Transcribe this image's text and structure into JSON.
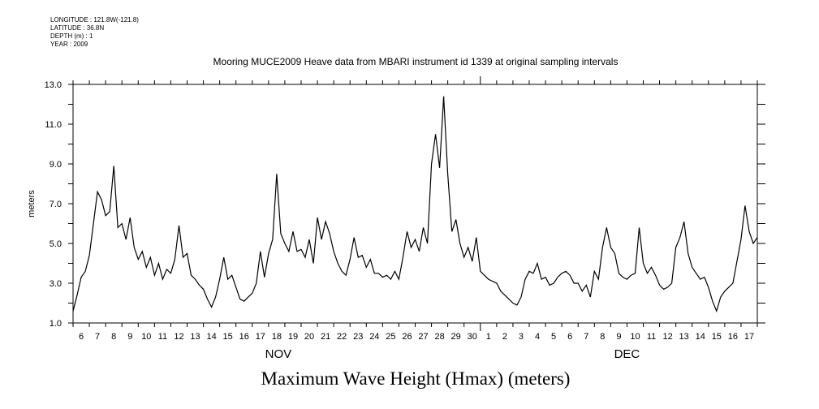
{
  "metadata": {
    "longitude": "LONGITUDE : 121.8W(-121.8)",
    "latitude": "LATITUDE : 36.8N",
    "depth": "DEPTH (m) : 1",
    "year": "YEAR : 2009"
  },
  "chart_data": {
    "type": "line",
    "title": "Mooring MUCE2009 Heave data from MBARI instrument id 1339 at original sampling intervals",
    "xlabel": "Maximum Wave Height (Hmax) (meters)",
    "ylabel": "meters",
    "ylim": [
      1.0,
      13.0
    ],
    "yticks": [
      "1.0",
      "3.0",
      "5.0",
      "7.0",
      "9.0",
      "11.0",
      "13.0"
    ],
    "x_day_labels": [
      "6",
      "7",
      "8",
      "9",
      "10",
      "11",
      "12",
      "13",
      "14",
      "15",
      "16",
      "17",
      "18",
      "19",
      "20",
      "21",
      "22",
      "23",
      "24",
      "25",
      "26",
      "27",
      "28",
      "29",
      "30",
      "1",
      "2",
      "3",
      "4",
      "5",
      "6",
      "7",
      "8",
      "9",
      "10",
      "11",
      "12",
      "13",
      "14",
      "15",
      "16",
      "17"
    ],
    "month_labels": [
      {
        "label": "NOV",
        "center_day_index": 12.6
      },
      {
        "label": "DEC",
        "center_day_index": 34
      }
    ],
    "x_start": "2009-11-06",
    "x_step_days": 0.25,
    "grid": false,
    "series": [
      {
        "name": "Hmax",
        "color": "#000000",
        "values": [
          1.6,
          2.4,
          3.3,
          3.6,
          4.4,
          6.0,
          7.6,
          7.2,
          6.4,
          6.6,
          8.9,
          5.8,
          6.0,
          5.2,
          6.3,
          4.8,
          4.2,
          4.6,
          3.8,
          4.3,
          3.4,
          4.0,
          3.2,
          3.7,
          3.5,
          4.2,
          5.9,
          4.3,
          4.5,
          3.4,
          3.2,
          2.9,
          2.7,
          2.2,
          1.8,
          2.3,
          3.2,
          4.3,
          3.2,
          3.4,
          2.8,
          2.2,
          2.1,
          2.3,
          2.5,
          3.0,
          4.6,
          3.3,
          4.5,
          5.2,
          8.5,
          5.5,
          5.0,
          4.6,
          5.6,
          4.6,
          4.7,
          4.3,
          5.2,
          4.0,
          6.3,
          5.2,
          6.1,
          5.5,
          4.6,
          4.0,
          3.6,
          3.4,
          4.2,
          5.3,
          4.3,
          4.4,
          3.8,
          4.2,
          3.5,
          3.5,
          3.3,
          3.4,
          3.2,
          3.6,
          3.2,
          4.3,
          5.6,
          4.8,
          5.2,
          4.6,
          5.8,
          5.0,
          9.0,
          10.5,
          8.8,
          12.4,
          8.5,
          5.6,
          6.2,
          5.0,
          4.3,
          4.8,
          4.1,
          5.3,
          3.6,
          3.4,
          3.2,
          3.1,
          3.0,
          2.6,
          2.4,
          2.2,
          2.0,
          1.9,
          2.3,
          3.2,
          3.6,
          3.5,
          4.0,
          3.2,
          3.3,
          2.9,
          3.0,
          3.3,
          3.5,
          3.6,
          3.4,
          3.0,
          3.0,
          2.6,
          2.9,
          2.3,
          3.6,
          3.2,
          4.8,
          5.8,
          4.8,
          4.5,
          3.5,
          3.3,
          3.2,
          3.4,
          3.5,
          5.8,
          4.0,
          3.5,
          3.8,
          3.4,
          2.9,
          2.7,
          2.8,
          3.0,
          4.8,
          5.3,
          6.1,
          4.5,
          3.8,
          3.5,
          3.2,
          3.3,
          2.8,
          2.1,
          1.6,
          2.3,
          2.6,
          2.8,
          3.0,
          4.1,
          5.2,
          6.9,
          5.6,
          5.0,
          5.3
        ]
      }
    ]
  }
}
